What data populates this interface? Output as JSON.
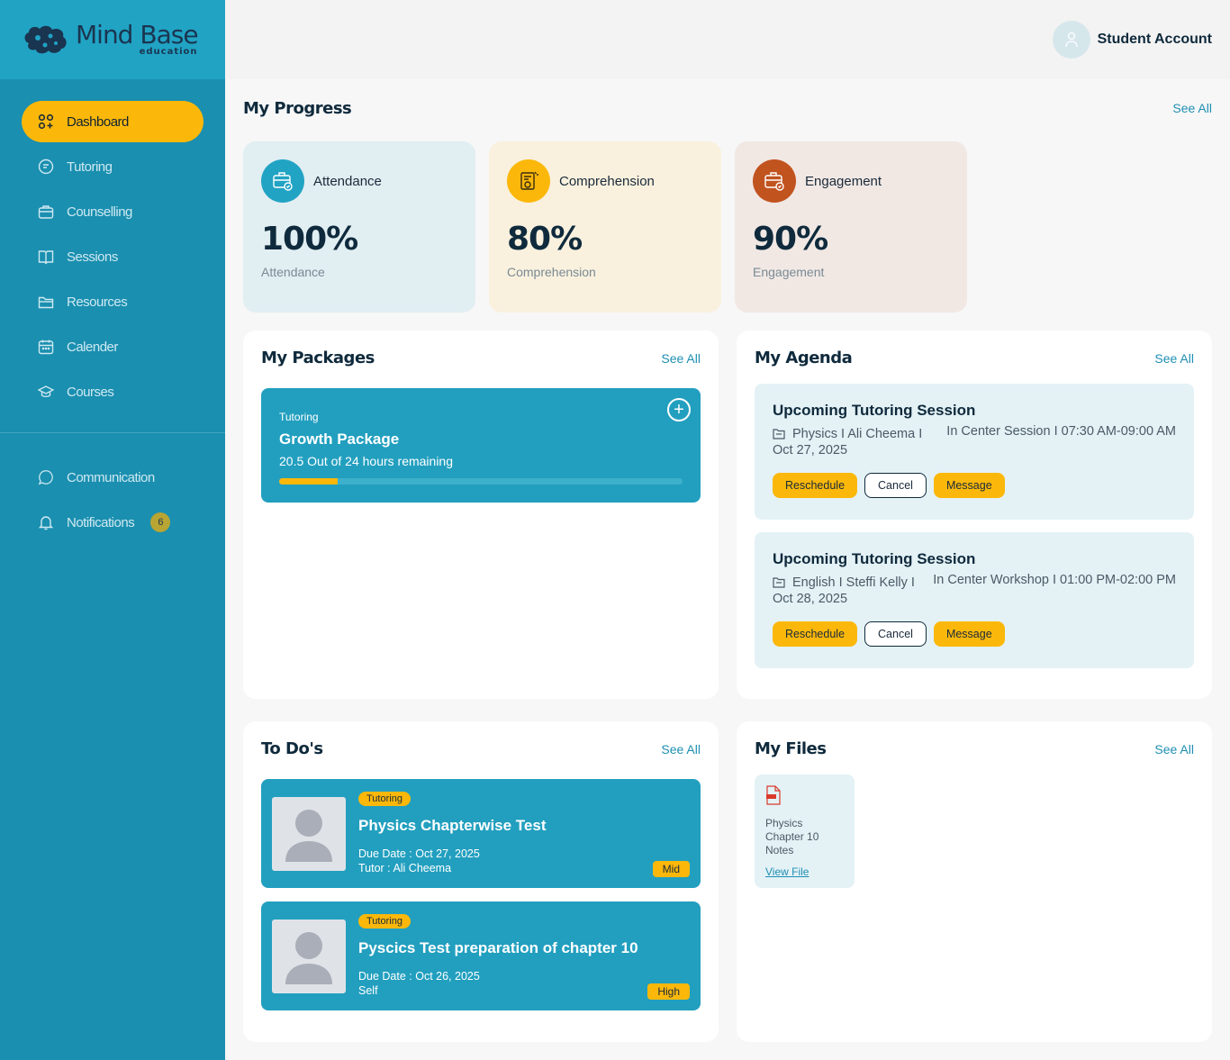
{
  "brand": {
    "name": "Mind Base",
    "tagline": "education"
  },
  "sidebar": {
    "items": [
      {
        "label": "Dashboard",
        "icon": "grid-icon",
        "active": true
      },
      {
        "label": "Tutoring",
        "icon": "tutoring-icon"
      },
      {
        "label": "Counselling",
        "icon": "briefcase-icon"
      },
      {
        "label": "Sessions",
        "icon": "book-icon"
      },
      {
        "label": "Resources",
        "icon": "folder-icon"
      },
      {
        "label": "Calender",
        "icon": "calendar-icon"
      },
      {
        "label": "Courses",
        "icon": "graduation-cap-icon"
      }
    ],
    "bottom_items": [
      {
        "label": "Communication",
        "icon": "chat-bubble-icon"
      },
      {
        "label": "Notifications",
        "icon": "bell-icon",
        "badge": "6"
      }
    ]
  },
  "header": {
    "account": "Student Account"
  },
  "progress": {
    "title": "My Progress",
    "see_all": "See All",
    "cards": [
      {
        "label": "Attendance",
        "value": "100%",
        "sub": "Attendance",
        "color": "#21a3c4",
        "bg": "#e1eef2"
      },
      {
        "label": "Comprehension",
        "value": "80%",
        "sub": "Comprehension",
        "color": "#fbb80a",
        "bg": "#f9f1de"
      },
      {
        "label": "Engagement",
        "value": "90%",
        "sub": "Engagement",
        "color": "#c1531f",
        "bg": "#f1e8e4"
      }
    ]
  },
  "packages": {
    "title": "My Packages",
    "see_all": "See All",
    "item": {
      "type": "Tutoring",
      "name": "Growth Package",
      "hours": "20.5 Out of 24 hours remaining",
      "progress": 0.145
    }
  },
  "agenda": {
    "title": "My Agenda",
    "see_all": "See All",
    "items": [
      {
        "title": "Upcoming Tutoring Session",
        "who": "Physics I Ali Cheema I",
        "date": "Oct 27, 2025",
        "info": "In Center Session I 07:30 AM-09:00 AM"
      },
      {
        "title": "Upcoming Tutoring Session",
        "who": "English I Steffi Kelly I",
        "date": "Oct 28, 2025",
        "info": "In Center Workshop I 01:00 PM-02:00 PM"
      }
    ],
    "buttons": {
      "reschedule": "Reschedule",
      "cancel": "Cancel",
      "message": "Message"
    }
  },
  "todos": {
    "title": "To Do's",
    "see_all": "See All",
    "items": [
      {
        "tag": "Tutoring",
        "title": "Physics Chapterwise Test",
        "due": "Due Date : Oct 27, 2025",
        "who": "Tutor : Ali Cheema",
        "priority": "Mid"
      },
      {
        "tag": "Tutoring",
        "title": "Pyscics Test preparation of chapter 10",
        "due": "Due Date : Oct 26, 2025",
        "who": "Self",
        "priority": "High"
      }
    ]
  },
  "files": {
    "title": "My Files",
    "see_all": "See All",
    "items": [
      {
        "name": "Physics Chapter 10 Notes",
        "link": "View File",
        "icon": "pdf-file-icon"
      }
    ]
  }
}
